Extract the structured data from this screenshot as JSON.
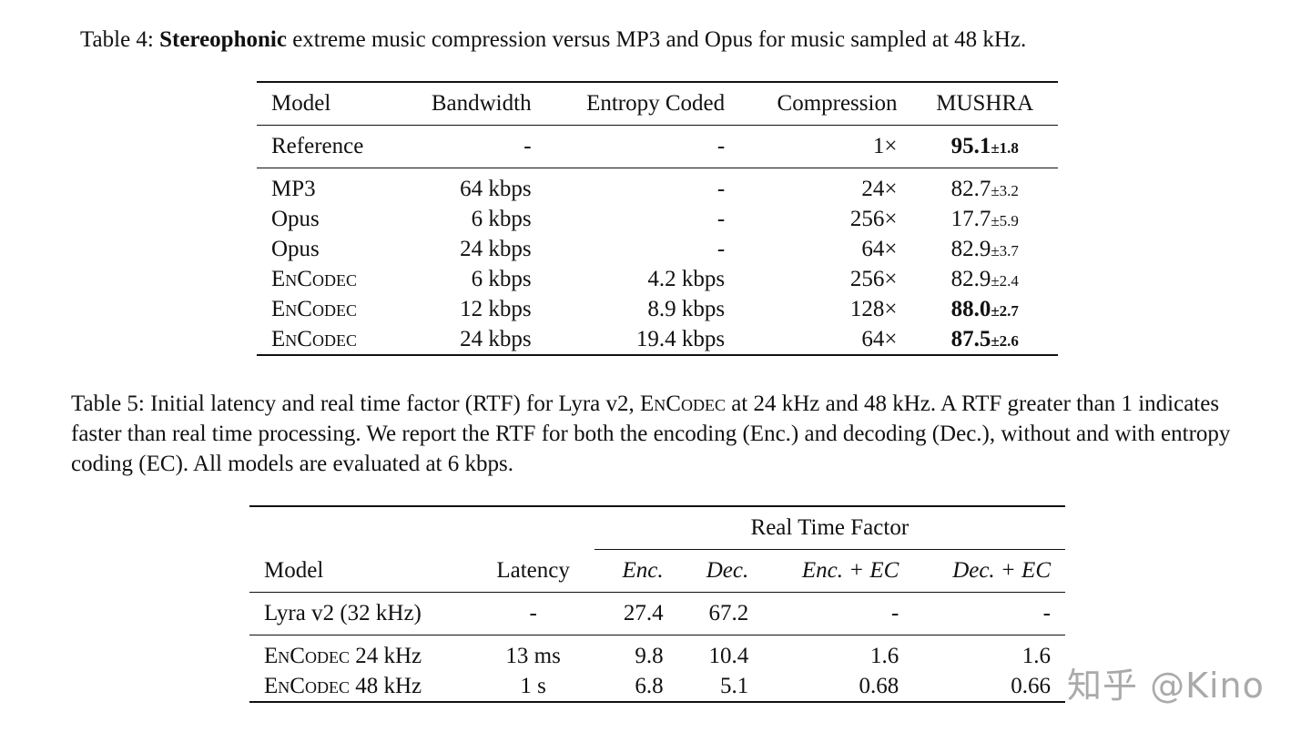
{
  "table4": {
    "caption_label": "Table 4:",
    "caption_bold": "Stereophonic",
    "caption_rest": "extreme music compression versus MP3 and Opus for music sampled at 48 kHz.",
    "headers": [
      "Model",
      "Bandwidth",
      "Entropy Coded",
      "Compression",
      "MUSHRA"
    ],
    "reference": {
      "model": "Reference",
      "bandwidth": "-",
      "entropy": "-",
      "compression": "1×",
      "mushra": "95.1",
      "pm": "±1.8",
      "bold": true
    },
    "rows": [
      {
        "model": "MP3",
        "bandwidth": "64 kbps",
        "entropy": "-",
        "compression": "24×",
        "mushra": "82.7",
        "pm": "±3.2"
      },
      {
        "model": "Opus",
        "bandwidth": "6 kbps",
        "entropy": "-",
        "compression": "256×",
        "mushra": "17.7",
        "pm": "±5.9"
      },
      {
        "model": "Opus",
        "bandwidth": "24 kbps",
        "entropy": "-",
        "compression": "64×",
        "mushra": "82.9",
        "pm": "±3.7"
      },
      {
        "model": "EnCodec",
        "bandwidth": "6 kbps",
        "entropy": "4.2 kbps",
        "compression": "256×",
        "mushra": "82.9",
        "pm": "±2.4"
      },
      {
        "model": "EnCodec",
        "bandwidth": "12 kbps",
        "entropy": "8.9 kbps",
        "compression": "128×",
        "mushra": "88.0",
        "pm": "±2.7"
      },
      {
        "model": "EnCodec",
        "bandwidth": "24 kbps",
        "entropy": "19.4 kbps",
        "compression": "64×",
        "mushra": "87.5",
        "pm": "±2.6"
      }
    ]
  },
  "table5": {
    "caption": "Table 5: Initial latency and real time factor (RTF) for Lyra v2, EnCodec at 24 kHz and 48 kHz. A RTF greater than 1 indicates faster than real time processing. We report the RTF for both the encoding (Enc.) and decoding (Dec.), without and with entropy coding (EC). All models are evaluated at 6 kbps.",
    "caption_a": "Table 5: Initial latency and real time factor (RTF) for Lyra v2,",
    "caption_sc": "EnCodec",
    "caption_b": "at 24 kHz and 48 kHz. A RTF greater than 1 indicates faster than real time processing. We report the RTF for both the encoding (Enc.) and decoding (Dec.), without and with entropy coding (EC). All models are evaluated at 6 kbps.",
    "group_header": "Real Time Factor",
    "headers": [
      "Model",
      "Latency",
      "Enc.",
      "Dec.",
      "Enc. + EC",
      "Dec. + EC"
    ],
    "lyra": {
      "model": "Lyra v2 (32 kHz)",
      "latency": "-",
      "enc": "27.4",
      "dec": "67.2",
      "enc_ec": "-",
      "dec_ec": "-"
    },
    "rows": [
      {
        "model_sc": "EnCodec",
        "model_rest": " 24 kHz",
        "latency": "13 ms",
        "enc": "9.8",
        "dec": "10.4",
        "enc_ec": "1.6",
        "dec_ec": "1.6"
      },
      {
        "model_sc": "EnCodec",
        "model_rest": " 48 kHz",
        "latency": "1 s",
        "enc": "6.8",
        "dec": "5.1",
        "enc_ec": "0.68",
        "dec_ec": "0.66"
      }
    ]
  },
  "watermark": "知乎 @Kino"
}
